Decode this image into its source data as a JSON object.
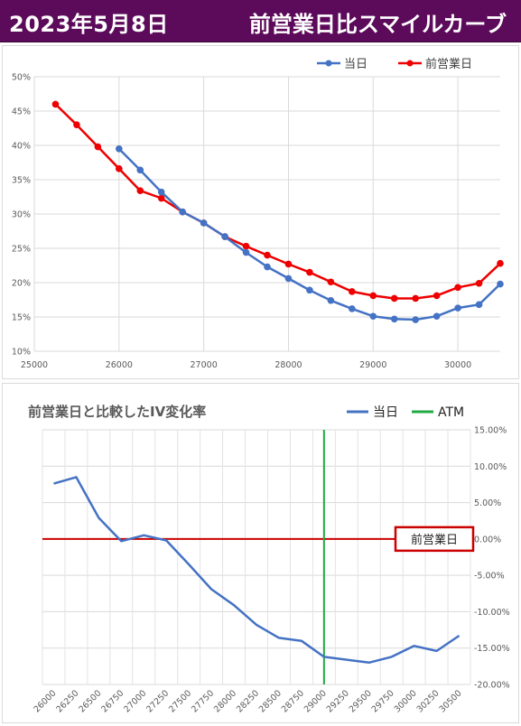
{
  "header": {
    "date": "2023年5月8日",
    "title": "前営業日比スマイルカーブ"
  },
  "colors": {
    "header_bg": "#5c0a5a",
    "today": "#4472c4",
    "prev": "#ee0000",
    "atm": "#22aa44",
    "baseline": "#cc0000"
  },
  "chart_data": [
    {
      "type": "line",
      "title": "",
      "xlabel": "",
      "ylabel": "",
      "xlim": [
        25000,
        30500
      ],
      "ylim": [
        10,
        50
      ],
      "x_ticks": [
        "25000",
        "26000",
        "27000",
        "28000",
        "29000",
        "30000"
      ],
      "x_tick_values": [
        25000,
        26000,
        27000,
        28000,
        29000,
        30000
      ],
      "y_ticks": [
        "10%",
        "15%",
        "20%",
        "25%",
        "30%",
        "35%",
        "40%",
        "45%",
        "50%"
      ],
      "y_tick_values": [
        10,
        15,
        20,
        25,
        30,
        35,
        40,
        45,
        50
      ],
      "grid": true,
      "legend": "top-right",
      "series": [
        {
          "name": "当日",
          "color": "#4472c4",
          "x": [
            26000,
            26250,
            26500,
            26750,
            27000,
            27250,
            27500,
            27750,
            28000,
            28250,
            28500,
            28750,
            29000,
            29250,
            29500,
            29750,
            30000,
            30250,
            30500
          ],
          "y": [
            39.5,
            36.4,
            33.2,
            30.3,
            28.7,
            26.7,
            24.4,
            22.3,
            20.6,
            18.9,
            17.4,
            16.2,
            15.1,
            14.7,
            14.6,
            15.1,
            16.3,
            16.8,
            19.8
          ]
        },
        {
          "name": "前営業日",
          "color": "#ee0000",
          "x": [
            25250,
            25500,
            25750,
            26000,
            26250,
            26500,
            26750,
            27000,
            27250,
            27500,
            27750,
            28000,
            28250,
            28500,
            28750,
            29000,
            29250,
            29500,
            29750,
            30000,
            30250,
            30500
          ],
          "y": [
            46.0,
            43.0,
            39.8,
            36.6,
            33.4,
            32.3,
            30.3,
            28.7,
            26.7,
            25.3,
            24.0,
            22.7,
            21.5,
            20.1,
            18.7,
            18.1,
            17.7,
            17.7,
            18.1,
            19.3,
            19.9,
            22.8
          ]
        }
      ]
    },
    {
      "type": "line",
      "title": "前営業日と比較したIV変化率",
      "xlabel": "",
      "ylabel": "",
      "ylim": [
        -20,
        15
      ],
      "categories": [
        "26000",
        "26250",
        "26500",
        "26750",
        "27000",
        "27250",
        "27500",
        "27750",
        "28000",
        "28250",
        "28500",
        "28750",
        "29000",
        "29250",
        "29500",
        "29750",
        "30000",
        "30250",
        "30500"
      ],
      "y_ticks": [
        "15.00%",
        "10.00%",
        "5.00%",
        "0.00%",
        "-5.00%",
        "-10.00%",
        "-15.00%",
        "-20.00%"
      ],
      "y_tick_values": [
        15,
        10,
        5,
        0,
        -5,
        -10,
        -15,
        -20
      ],
      "grid": true,
      "legend": "top-right",
      "atm_strike": "29000",
      "baseline_label": "前営業日",
      "series": [
        {
          "name": "当日",
          "color": "#4472c4",
          "values": [
            7.6,
            8.5,
            2.9,
            -0.3,
            0.5,
            -0.2,
            -3.5,
            -6.9,
            -9.1,
            -11.8,
            -13.6,
            -14.0,
            -16.2,
            -16.6,
            -17.0,
            -16.2,
            -14.7,
            -15.4,
            -13.3
          ]
        },
        {
          "name": "ATM",
          "color": "#22aa44"
        }
      ]
    }
  ]
}
